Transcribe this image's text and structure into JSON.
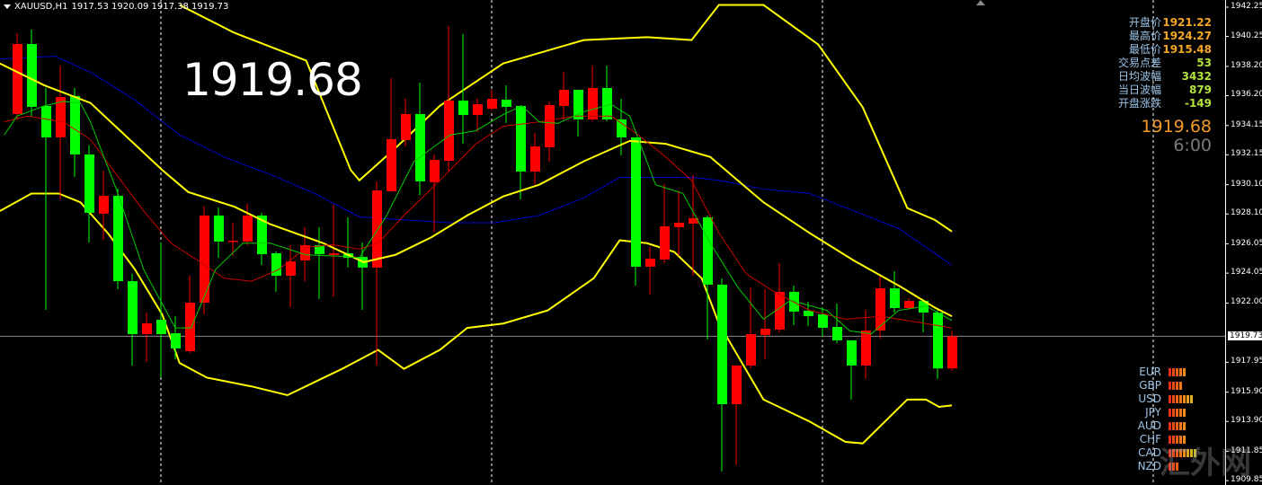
{
  "header": {
    "symbol": "XAUUSD,H1",
    "ohlc": "1917.53 1920.09 1917.38 1919.73"
  },
  "big_price": "1919.68",
  "info_panel": {
    "rows": [
      {
        "label": "开盘价",
        "value": "1921.22",
        "color": "#f5a623"
      },
      {
        "label": "最高价",
        "value": "1924.27",
        "color": "#f5a623"
      },
      {
        "label": "最低价",
        "value": "1915.48",
        "color": "#f5a623"
      },
      {
        "label": "交易点差",
        "value": "53",
        "color": "#b4e43c"
      },
      {
        "label": "日均波幅",
        "value": "3432",
        "color": "#b4e43c"
      },
      {
        "label": "当日波幅",
        "value": "879",
        "color": "#b4e43c"
      },
      {
        "label": "开盘涨跌",
        "value": "-149",
        "color": "#b4e43c"
      }
    ],
    "current_price": "1919.68",
    "countdown": "6:00"
  },
  "currency_strength": [
    {
      "name": "EUR",
      "level": 5
    },
    {
      "name": "GBP",
      "level": 4
    },
    {
      "name": "USD",
      "level": 7
    },
    {
      "name": "JPY",
      "level": 5
    },
    {
      "name": "AUD",
      "level": 5
    },
    {
      "name": "CHF",
      "level": 5
    },
    {
      "name": "CAD",
      "level": 8
    },
    {
      "name": "NZD",
      "level": 3
    }
  ],
  "watermark": "汇外网",
  "colors": {
    "bull": "#ff0000",
    "bear": "#00ff00",
    "bollinger": "#ffff00",
    "ma_slow": "#0000cc",
    "ma_mid": "#cc0000",
    "ma_fast": "#00cc00",
    "price_line": "#8a8a8a"
  },
  "chart_data": {
    "type": "candlestick",
    "symbol": "XAUUSD",
    "timeframe": "H1",
    "ylim": [
      1909.85,
      1942.45
    ],
    "y_ticks": [
      "1942.25",
      "1940.25",
      "1938.20",
      "1936.20",
      "1934.15",
      "1932.15",
      "1930.10",
      "1928.10",
      "1926.05",
      "1924.05",
      "1922.00",
      "1917.95",
      "1915.90",
      "1913.90",
      "1911.85",
      "1909.85"
    ],
    "current_price_label": "1919.73",
    "current_price": 1919.73,
    "candles_ohlc": [
      [
        1934.94,
        1940.47,
        1934.57,
        1939.73
      ],
      [
        1939.73,
        1940.71,
        1934.75,
        1935.43
      ],
      [
        1935.49,
        1936.72,
        1921.54,
        1933.34
      ],
      [
        1933.34,
        1938.25,
        1929.1,
        1936.1
      ],
      [
        1936.17,
        1936.72,
        1930.63,
        1932.17
      ],
      [
        1932.17,
        1932.79,
        1926.15,
        1928.18
      ],
      [
        1928.12,
        1931.06,
        1926.33,
        1929.34
      ],
      [
        1929.34,
        1929.84,
        1922.95,
        1923.5
      ],
      [
        1923.5,
        1924.0,
        1917.73,
        1919.88
      ],
      [
        1919.88,
        1921.35,
        1917.97,
        1920.62
      ],
      [
        1920.86,
        1926.15,
        1916.93,
        1919.88
      ],
      [
        1919.94,
        1921.11,
        1918.16,
        1918.9
      ],
      [
        1918.71,
        1923.87,
        1918.59,
        1922.03
      ],
      [
        1922.03,
        1928.61,
        1921.23,
        1927.99
      ],
      [
        1927.99,
        1928.55,
        1925.1,
        1926.21
      ],
      [
        1926.21,
        1927.5,
        1925.23,
        1926.27
      ],
      [
        1926.21,
        1928.79,
        1925.96,
        1927.99
      ],
      [
        1927.99,
        1928.18,
        1924.61,
        1925.35
      ],
      [
        1925.41,
        1925.53,
        1922.77,
        1923.87
      ],
      [
        1923.87,
        1925.96,
        1921.72,
        1924.86
      ],
      [
        1924.92,
        1927.19,
        1923.5,
        1925.96
      ],
      [
        1925.96,
        1927.19,
        1922.28,
        1925.35
      ],
      [
        1925.29,
        1928.73,
        1922.46,
        1925.41
      ],
      [
        1925.41,
        1927.87,
        1924.43,
        1925.1
      ],
      [
        1925.16,
        1926.15,
        1921.54,
        1924.43
      ],
      [
        1924.43,
        1930.33,
        1917.73,
        1929.71
      ],
      [
        1929.65,
        1937.39,
        1929.65,
        1933.22
      ],
      [
        1933.16,
        1935.98,
        1932.72,
        1934.94
      ],
      [
        1934.94,
        1937.09,
        1929.4,
        1930.33
      ],
      [
        1930.27,
        1932.17,
        1926.88,
        1931.8
      ],
      [
        1931.74,
        1940.96,
        1931.06,
        1935.86
      ],
      [
        1935.86,
        1940.41,
        1932.91,
        1934.87
      ],
      [
        1934.87,
        1935.98,
        1933.71,
        1935.61
      ],
      [
        1935.3,
        1936.6,
        1935.18,
        1935.98
      ],
      [
        1935.92,
        1936.9,
        1934.32,
        1935.43
      ],
      [
        1935.49,
        1935.55,
        1929.1,
        1931.0
      ],
      [
        1931.0,
        1933.65,
        1930.14,
        1932.72
      ],
      [
        1932.66,
        1935.8,
        1931.68,
        1935.55
      ],
      [
        1935.49,
        1937.82,
        1934.57,
        1936.6
      ],
      [
        1936.6,
        1936.6,
        1933.4,
        1934.57
      ],
      [
        1934.57,
        1938.25,
        1934.44,
        1936.72
      ],
      [
        1936.72,
        1938.25,
        1934.44,
        1934.57
      ],
      [
        1934.57,
        1935.98,
        1932.11,
        1933.34
      ],
      [
        1933.34,
        1933.34,
        1923.2,
        1924.49
      ],
      [
        1924.49,
        1925.84,
        1922.58,
        1925.04
      ],
      [
        1924.98,
        1930.14,
        1924.73,
        1927.25
      ],
      [
        1927.19,
        1929.71,
        1925.23,
        1927.5
      ],
      [
        1927.44,
        1930.76,
        1923.87,
        1927.81
      ],
      [
        1927.87,
        1927.99,
        1919.51,
        1923.26
      ],
      [
        1923.26,
        1923.69,
        1910.48,
        1915.08
      ],
      [
        1915.08,
        1917.73,
        1910.91,
        1917.73
      ],
      [
        1917.73,
        1923.07,
        1917.54,
        1919.88
      ],
      [
        1919.82,
        1922.95,
        1918.16,
        1920.25
      ],
      [
        1920.19,
        1924.73,
        1920.0,
        1922.77
      ],
      [
        1922.77,
        1923.2,
        1920.49,
        1921.42
      ],
      [
        1921.48,
        1922.09,
        1920.43,
        1921.11
      ],
      [
        1921.23,
        1921.72,
        1919.69,
        1920.31
      ],
      [
        1920.37,
        1921.97,
        1919.26,
        1919.45
      ],
      [
        1919.45,
        1919.45,
        1915.39,
        1917.73
      ],
      [
        1917.73,
        1921.54,
        1916.81,
        1920.12
      ],
      [
        1920.12,
        1923.87,
        1919.57,
        1923.01
      ],
      [
        1923.01,
        1924.18,
        1921.35,
        1921.66
      ],
      [
        1921.66,
        1922.34,
        1921.54,
        1922.15
      ],
      [
        1922.15,
        1922.28,
        1920.0,
        1921.35
      ],
      [
        1921.35,
        1921.54,
        1916.81,
        1917.53
      ],
      [
        1917.53,
        1920.09,
        1917.38,
        1919.73
      ]
    ],
    "indicators": {
      "bollinger_upper": [
        [
          11.3,
          1942.4
        ],
        [
          15.1,
          1940.5
        ],
        [
          20.1,
          1938.6
        ],
        [
          23.2,
          1931.1
        ],
        [
          23.8,
          1930.4
        ],
        [
          26.3,
          1932.6
        ],
        [
          29.4,
          1935.5
        ],
        [
          33.8,
          1938.4
        ],
        [
          39.4,
          1940.0
        ],
        [
          43.8,
          1940.2
        ],
        [
          46.9,
          1940.0
        ],
        [
          48.8,
          1942.4
        ],
        [
          51.9,
          1942.4
        ],
        [
          55.7,
          1939.7
        ],
        [
          58.8,
          1935.4
        ],
        [
          61.9,
          1928.5
        ],
        [
          63.8,
          1927.7
        ],
        [
          65,
          1926.9
        ]
      ],
      "bollinger_middle": [
        [
          -1.2,
          1938.4
        ],
        [
          1.9,
          1936.9
        ],
        [
          5.1,
          1935.7
        ],
        [
          10.1,
          1931.1
        ],
        [
          11.9,
          1929.6
        ],
        [
          15.1,
          1928.6
        ],
        [
          17.6,
          1927.4
        ],
        [
          21.3,
          1926.1
        ],
        [
          24.1,
          1924.8
        ],
        [
          26.3,
          1925.3
        ],
        [
          28.8,
          1926.5
        ],
        [
          31.3,
          1928.0
        ],
        [
          33.8,
          1929.3
        ],
        [
          36.3,
          1930.1
        ],
        [
          39.4,
          1931.7
        ],
        [
          42.6,
          1933.1
        ],
        [
          45.1,
          1932.9
        ],
        [
          48.2,
          1932.0
        ],
        [
          50.1,
          1930.4
        ],
        [
          51.9,
          1928.9
        ],
        [
          55.1,
          1926.8
        ],
        [
          58.2,
          1924.9
        ],
        [
          61.3,
          1923.2
        ],
        [
          63.8,
          1921.7
        ],
        [
          65,
          1921.1
        ]
      ],
      "bollinger_lower": [
        [
          -1.2,
          1928.3
        ],
        [
          1,
          1929.5
        ],
        [
          2.9,
          1929.5
        ],
        [
          4.4,
          1928.9
        ],
        [
          6.3,
          1926.8
        ],
        [
          8.2,
          1924.3
        ],
        [
          10.1,
          1921.2
        ],
        [
          11.3,
          1917.9
        ],
        [
          13.2,
          1916.9
        ],
        [
          16.3,
          1916.3
        ],
        [
          18.8,
          1915.7
        ],
        [
          20.7,
          1916.6
        ],
        [
          22.6,
          1917.5
        ],
        [
          25.1,
          1918.8
        ],
        [
          26.9,
          1917.5
        ],
        [
          29.4,
          1918.8
        ],
        [
          31.3,
          1920.3
        ],
        [
          33.8,
          1920.6
        ],
        [
          36.9,
          1921.5
        ],
        [
          40.1,
          1923.7
        ],
        [
          41.9,
          1926.3
        ],
        [
          43.8,
          1926.1
        ],
        [
          45.7,
          1925.5
        ],
        [
          47.6,
          1923.7
        ],
        [
          48.8,
          1920.6
        ],
        [
          51.9,
          1915.4
        ],
        [
          55.1,
          1913.9
        ],
        [
          57.6,
          1912.5
        ],
        [
          58.8,
          1912.4
        ],
        [
          61.9,
          1915.4
        ],
        [
          63.2,
          1915.4
        ],
        [
          64.1,
          1914.9
        ],
        [
          65,
          1915.0
        ]
      ],
      "ma_blue": [
        [
          -1.2,
          1938.7
        ],
        [
          2.6,
          1938.9
        ],
        [
          5.1,
          1937.8
        ],
        [
          8.2,
          1935.9
        ],
        [
          11.3,
          1933.5
        ],
        [
          14.4,
          1932.0
        ],
        [
          17.6,
          1930.8
        ],
        [
          20.7,
          1929.5
        ],
        [
          23.8,
          1927.9
        ],
        [
          26.9,
          1927.7
        ],
        [
          30.1,
          1927.5
        ],
        [
          33.2,
          1927.5
        ],
        [
          36.3,
          1928.0
        ],
        [
          39.4,
          1929.2
        ],
        [
          41.9,
          1930.6
        ],
        [
          43.8,
          1930.6
        ],
        [
          46.9,
          1930.6
        ],
        [
          48.8,
          1930.4
        ],
        [
          51.9,
          1929.8
        ],
        [
          55.1,
          1929.5
        ],
        [
          58.2,
          1928.3
        ],
        [
          61.3,
          1927.1
        ],
        [
          65,
          1924.6
        ]
      ],
      "ma_red": [
        [
          -0.9,
          1934.4
        ],
        [
          0.7,
          1934.8
        ],
        [
          3.2,
          1934.4
        ],
        [
          5.1,
          1933.2
        ],
        [
          6.9,
          1930.8
        ],
        [
          8.8,
          1928.3
        ],
        [
          10.7,
          1926.1
        ],
        [
          12.6,
          1924.9
        ],
        [
          14.4,
          1923.7
        ],
        [
          16.3,
          1923.5
        ],
        [
          18.2,
          1924.3
        ],
        [
          20.1,
          1925.8
        ],
        [
          21.9,
          1926.0
        ],
        [
          23.8,
          1925.7
        ],
        [
          25.1,
          1926.1
        ],
        [
          26.9,
          1928.0
        ],
        [
          29.4,
          1930.4
        ],
        [
          31.9,
          1932.9
        ],
        [
          33.8,
          1934.1
        ],
        [
          36.3,
          1934.4
        ],
        [
          38.8,
          1934.8
        ],
        [
          41.3,
          1934.8
        ],
        [
          43.2,
          1933.5
        ],
        [
          45.1,
          1932.0
        ],
        [
          46.9,
          1930.4
        ],
        [
          48.8,
          1926.8
        ],
        [
          50.7,
          1924.0
        ],
        [
          52.6,
          1922.8
        ],
        [
          55.1,
          1921.5
        ],
        [
          57.6,
          1920.9
        ],
        [
          60.1,
          1921.1
        ],
        [
          61.3,
          1920.9
        ],
        [
          63.2,
          1920.6
        ],
        [
          65,
          1920.3
        ]
      ],
      "ma_green": [
        [
          -0.9,
          1933.5
        ],
        [
          0,
          1934.8
        ],
        [
          1.9,
          1935.5
        ],
        [
          3.2,
          1935.8
        ],
        [
          4.4,
          1935.7
        ],
        [
          5.1,
          1934.4
        ],
        [
          6.9,
          1929.8
        ],
        [
          8.8,
          1924.3
        ],
        [
          11,
          1920.3
        ],
        [
          12.1,
          1920.3
        ],
        [
          13.8,
          1924.3
        ],
        [
          15.7,
          1926.1
        ],
        [
          17.6,
          1926.1
        ],
        [
          20.1,
          1925.3
        ],
        [
          22.6,
          1925.2
        ],
        [
          23.8,
          1925.1
        ],
        [
          25.7,
          1928.0
        ],
        [
          27.6,
          1931.7
        ],
        [
          30.1,
          1933.5
        ],
        [
          31.9,
          1933.8
        ],
        [
          33.8,
          1934.9
        ],
        [
          35.1,
          1935.5
        ],
        [
          36.3,
          1934.4
        ],
        [
          37.6,
          1934.3
        ],
        [
          39.4,
          1935.1
        ],
        [
          41.3,
          1935.6
        ],
        [
          42.6,
          1934.8
        ],
        [
          44.4,
          1930.1
        ],
        [
          46.3,
          1929.5
        ],
        [
          48.2,
          1926.1
        ],
        [
          50.1,
          1923.1
        ],
        [
          51.9,
          1920.9
        ],
        [
          53.8,
          1922.2
        ],
        [
          56.3,
          1921.5
        ],
        [
          57.9,
          1920.1
        ],
        [
          59.4,
          1919.9
        ],
        [
          61.3,
          1921.5
        ],
        [
          63.2,
          1921.8
        ],
        [
          65,
          1920.8
        ]
      ]
    },
    "grid": false
  }
}
